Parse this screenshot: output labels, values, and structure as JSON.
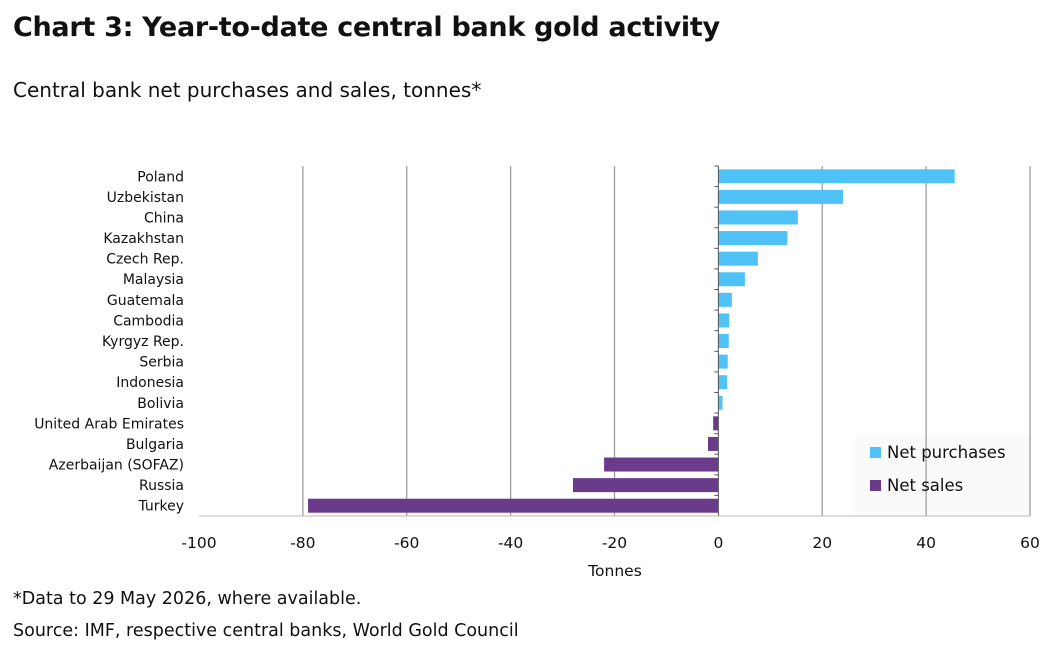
{
  "header": {
    "title": "Chart 3: Year-to-date central bank gold activity",
    "subtitle": "Central bank net purchases and sales, tonnes*"
  },
  "footer": {
    "note": "*Data to 29 May 2026, where available.",
    "source": "Source: IMF, respective central banks, World Gold Council"
  },
  "chart_data": {
    "type": "bar",
    "orientation": "horizontal",
    "categories": [
      "Poland",
      "Uzbekistan",
      "China",
      "Kazakhstan",
      "Czech Rep.",
      "Malaysia",
      "Guatemala",
      "Cambodia",
      "Kyrgyz Rep.",
      "Serbia",
      "Indonesia",
      "Bolivia",
      "United Arab Emirates",
      "Bulgaria",
      "Azerbaijan (SOFAZ)",
      "Russia",
      "Turkey"
    ],
    "values": [
      45.5,
      24,
      15.3,
      13.3,
      7.6,
      5.1,
      2.6,
      2.1,
      2.0,
      1.8,
      1.7,
      0.8,
      -1.0,
      -2.0,
      -22,
      -28,
      -79
    ],
    "series": [
      {
        "name": "Net purchases",
        "color": "#4fc3f7"
      },
      {
        "name": "Net sales",
        "color": "#6b3b8b"
      }
    ],
    "xlabel": "Tonnes",
    "xlim": [
      -100,
      60
    ],
    "xticks": [
      -100,
      -80,
      -60,
      -40,
      -20,
      0,
      20,
      40,
      60
    ],
    "grid": "vertical",
    "legend_position": "bottom-right"
  }
}
